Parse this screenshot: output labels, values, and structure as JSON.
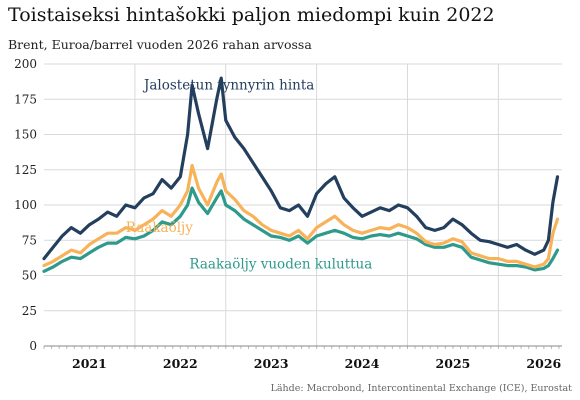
{
  "chart_data": {
    "type": "line",
    "title": "Toistaiseksi hintašokki paljon miedompi kuin 2022",
    "subtitle": "Brent, Euroa/barrel vuoden 2026 rahan arvossa",
    "source": "Lähde: Macrobond, Intercontinental Exchange (ICE), Eurostat",
    "ylim": [
      0,
      200
    ],
    "yticks": [
      0,
      25,
      50,
      75,
      100,
      125,
      150,
      175,
      200
    ],
    "xlim": [
      2020.5,
      2026.2
    ],
    "xtick_labels": [
      {
        "label": "2021",
        "pos": 2021.0
      },
      {
        "label": "2022",
        "pos": 2022.0
      },
      {
        "label": "2023",
        "pos": 2023.0
      },
      {
        "label": "2024",
        "pos": 2024.0
      },
      {
        "label": "2025",
        "pos": 2025.0
      },
      {
        "label": "2026",
        "pos": 2026.0
      }
    ],
    "year_boundaries": [
      2021.5,
      2022.5,
      2023.5,
      2024.5,
      2025.5
    ],
    "grid": true,
    "x": [
      2020.5,
      2020.6,
      2020.7,
      2020.8,
      2020.9,
      2021.0,
      2021.1,
      2021.2,
      2021.3,
      2021.4,
      2021.5,
      2021.6,
      2021.7,
      2021.8,
      2021.9,
      2022.0,
      2022.08,
      2022.13,
      2022.2,
      2022.3,
      2022.4,
      2022.45,
      2022.5,
      2022.6,
      2022.7,
      2022.8,
      2022.9,
      2023.0,
      2023.1,
      2023.2,
      2023.3,
      2023.4,
      2023.5,
      2023.6,
      2023.7,
      2023.8,
      2023.9,
      2024.0,
      2024.1,
      2024.2,
      2024.3,
      2024.4,
      2024.5,
      2024.6,
      2024.7,
      2024.8,
      2024.9,
      2025.0,
      2025.1,
      2025.2,
      2025.3,
      2025.4,
      2025.5,
      2025.6,
      2025.7,
      2025.8,
      2025.9,
      2026.0,
      2026.05,
      2026.1,
      2026.15
    ],
    "series": [
      {
        "name": "Jalostetun tynnyrin hinta",
        "color": "#243f5e",
        "label_pos": [
          2021.6,
          182
        ],
        "values": [
          62,
          70,
          78,
          84,
          80,
          86,
          90,
          95,
          92,
          100,
          98,
          105,
          108,
          118,
          112,
          120,
          150,
          185,
          165,
          140,
          175,
          190,
          160,
          148,
          140,
          130,
          120,
          110,
          98,
          96,
          100,
          92,
          108,
          115,
          120,
          105,
          98,
          92,
          95,
          98,
          96,
          100,
          98,
          92,
          84,
          82,
          84,
          90,
          86,
          80,
          75,
          74,
          72,
          70,
          72,
          68,
          65,
          68,
          75,
          102,
          120
        ]
      },
      {
        "name": "Raakaöljy",
        "color": "#f7b25a",
        "label_pos": [
          2021.4,
          81
        ],
        "values": [
          57,
          60,
          64,
          68,
          66,
          72,
          76,
          80,
          80,
          84,
          82,
          86,
          90,
          96,
          92,
          100,
          110,
          128,
          112,
          100,
          116,
          122,
          110,
          104,
          96,
          92,
          86,
          82,
          80,
          78,
          82,
          76,
          84,
          88,
          92,
          86,
          82,
          80,
          82,
          84,
          83,
          86,
          84,
          80,
          74,
          72,
          73,
          76,
          74,
          66,
          64,
          62,
          62,
          60,
          60,
          58,
          56,
          58,
          62,
          80,
          90
        ]
      },
      {
        "name": "Raakaöljy vuoden kuluttua",
        "color": "#2e9a8c",
        "label_pos": [
          2022.1,
          55
        ],
        "values": [
          53,
          56,
          60,
          63,
          62,
          66,
          70,
          73,
          73,
          77,
          76,
          78,
          82,
          88,
          86,
          92,
          100,
          112,
          102,
          94,
          105,
          110,
          100,
          96,
          90,
          86,
          82,
          78,
          77,
          75,
          78,
          73,
          78,
          80,
          82,
          80,
          77,
          76,
          78,
          79,
          78,
          80,
          78,
          76,
          72,
          70,
          70,
          72,
          70,
          63,
          61,
          59,
          58,
          57,
          57,
          56,
          54,
          55,
          57,
          62,
          68
        ]
      }
    ]
  }
}
